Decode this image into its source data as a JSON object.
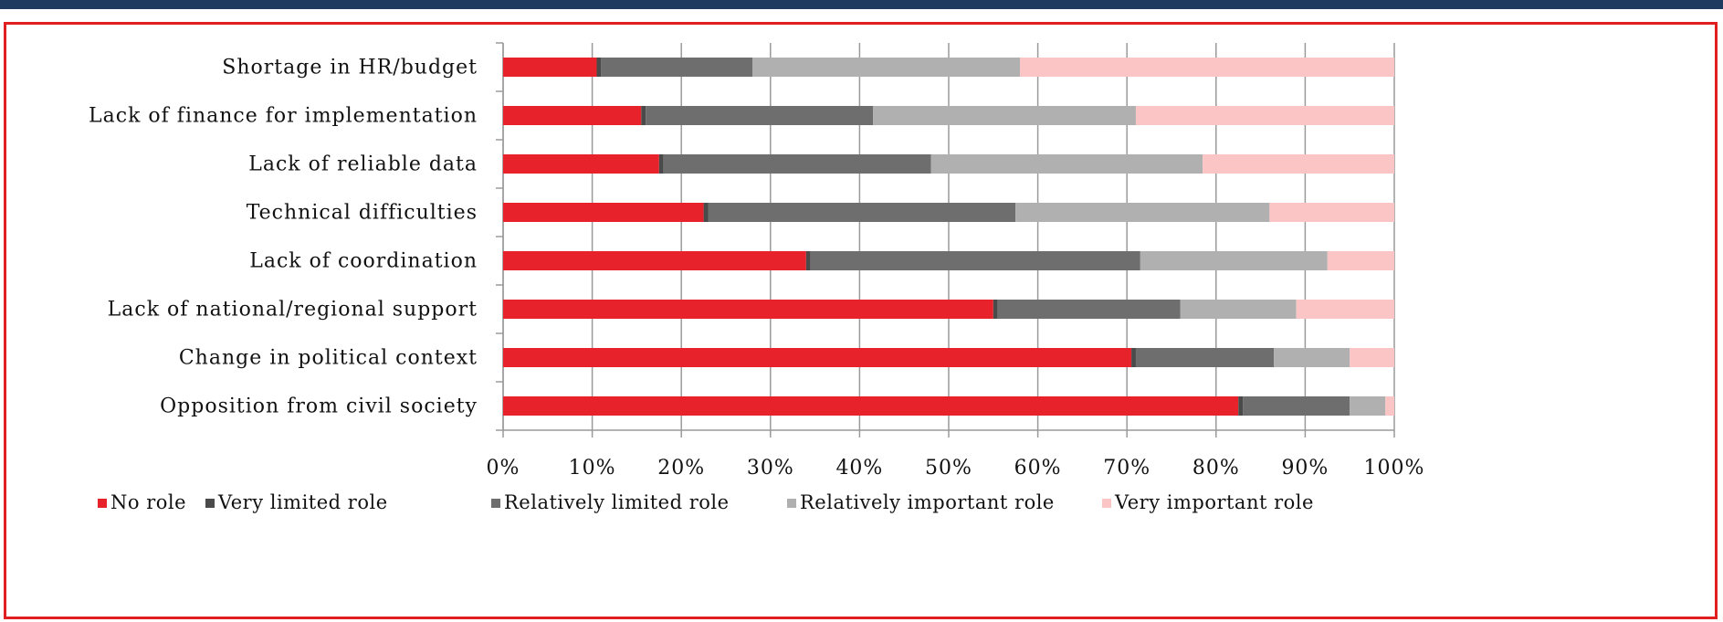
{
  "chart_data": {
    "type": "bar",
    "orientation": "horizontal",
    "stacked": "percent",
    "categories": [
      "Shortage in HR/budget",
      "Lack of finance for implementation",
      "Lack of reliable data",
      "Technical difficulties",
      "Lack of coordination",
      "Lack of national/regional support",
      "Change in political context",
      "Opposition from civil society"
    ],
    "series": [
      {
        "name": "No role",
        "color": "#e8222a",
        "values": [
          10.5,
          15.5,
          17.5,
          22.5,
          34,
          55,
          70.5,
          82.5
        ]
      },
      {
        "name": "Very limited role",
        "color": "#4a4a4a",
        "values": [
          0.5,
          0.5,
          0.5,
          0.5,
          0.5,
          0.5,
          0.5,
          0.5
        ]
      },
      {
        "name": "Relatively limited role",
        "color": "#6e6e6e",
        "values": [
          17,
          25.5,
          30,
          34.5,
          37,
          20.5,
          15.5,
          12
        ]
      },
      {
        "name": "Relatively important role",
        "color": "#b0b0b0",
        "values": [
          30,
          29.5,
          30.5,
          28.5,
          21,
          13,
          8.5,
          4
        ]
      },
      {
        "name": "Very important role",
        "color": "#fbc5c5",
        "values": [
          42,
          29,
          21.5,
          14,
          7.5,
          11,
          5,
          1
        ]
      }
    ],
    "xlim": [
      0,
      100
    ],
    "ticks": [
      "0%",
      "10%",
      "20%",
      "30%",
      "40%",
      "50%",
      "60%",
      "70%",
      "80%",
      "90%",
      "100%"
    ],
    "grid": true,
    "legend_position": "bottom"
  }
}
